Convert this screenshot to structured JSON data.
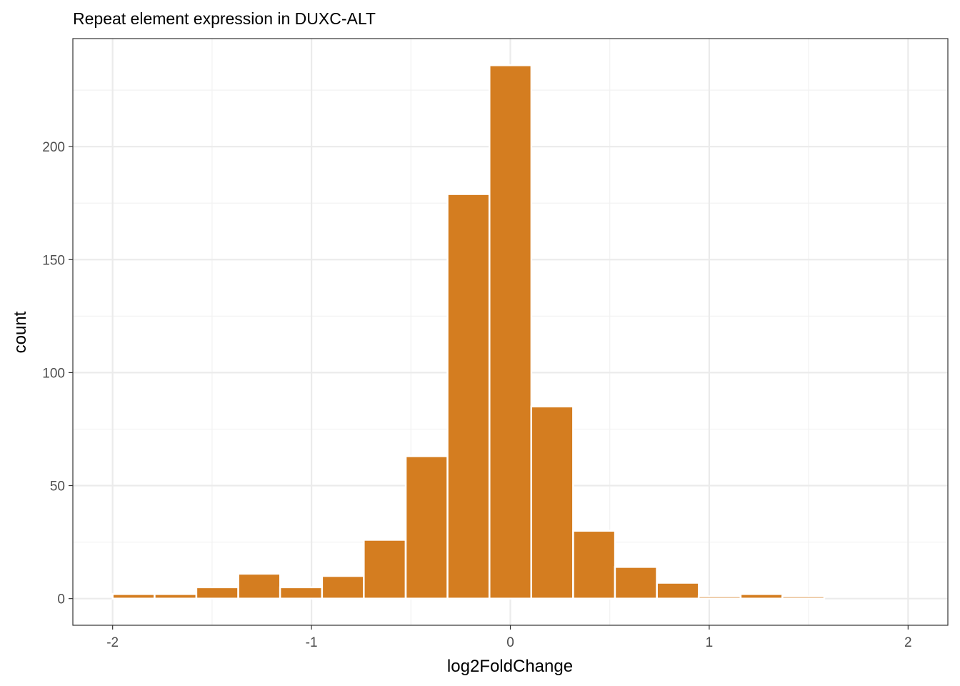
{
  "chart_data": {
    "type": "bar",
    "title": "Repeat element expression in DUXC-ALT",
    "xlabel": "log2FoldChange",
    "ylabel": "count",
    "xlim": [
      -2.2,
      2.2
    ],
    "ylim": [
      -11.8,
      247.8
    ],
    "x_ticks": [
      -2,
      -1,
      0,
      1,
      2
    ],
    "x_tick_labels": [
      "-2",
      "-1",
      "0",
      "1",
      "2"
    ],
    "y_ticks": [
      0,
      50,
      100,
      150,
      200
    ],
    "y_tick_labels": [
      "0",
      "50",
      "100",
      "150",
      "200"
    ],
    "bin_width": 0.2105,
    "bin_starts": [
      -2.0,
      -1.789,
      -1.579,
      -1.368,
      -1.158,
      -0.947,
      -0.737,
      -0.526,
      -0.316,
      -0.105,
      0.105,
      0.316,
      0.526,
      0.737,
      0.947,
      1.158,
      1.368,
      1.579,
      1.789
    ],
    "values": [
      2,
      2,
      5,
      11,
      5,
      10,
      26,
      63,
      179,
      236,
      85,
      30,
      14,
      7,
      1,
      2,
      1,
      0,
      0
    ],
    "grid": true,
    "legend": "none",
    "colors": {
      "bar_fill": "#D47D20",
      "bar_outline": "#FFFFFF",
      "panel_border": "#333333",
      "grid_major": "#EBEBEB",
      "grid_minor": "#F2F2F2"
    }
  }
}
